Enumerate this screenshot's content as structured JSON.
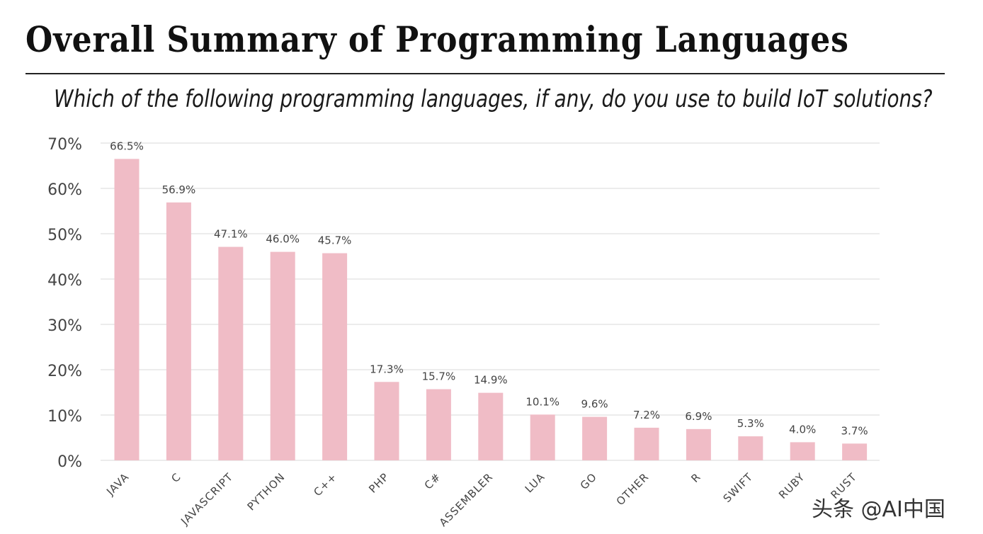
{
  "header": {
    "title": "Overall Summary of Programming Languages",
    "subtitle": "Which of the following programming languages, if any, do you use to build IoT solutions?"
  },
  "watermark": "头条 @AI中国",
  "chart_data": {
    "type": "bar",
    "categories": [
      "JAVA",
      "C",
      "JAVASCRIPT",
      "PYTHON",
      "C++",
      "PHP",
      "C#",
      "ASSEMBLER",
      "LUA",
      "GO",
      "OTHER",
      "R",
      "SWIFT",
      "RUBY",
      "RUST"
    ],
    "values": [
      66.5,
      56.9,
      47.1,
      46.0,
      45.7,
      17.3,
      15.7,
      14.9,
      10.1,
      9.6,
      7.2,
      6.9,
      5.3,
      4.0,
      3.7
    ],
    "data_labels": [
      "66.5%",
      "56.9%",
      "47.1%",
      "46.0%",
      "45.7%",
      "17.3%",
      "15.7%",
      "14.9%",
      "10.1%",
      "9.6%",
      "7.2%",
      "6.9%",
      "5.3%",
      "4.0%",
      "3.7%"
    ],
    "y_ticks": [
      "0%",
      "10%",
      "20%",
      "30%",
      "40%",
      "50%",
      "60%",
      "70%"
    ],
    "ylim": [
      0,
      70
    ],
    "xlabel": "",
    "ylabel": "",
    "grid": true,
    "bar_color": "#f0bcc6",
    "grid_color": "#d9d9d9",
    "text_color": "#444444"
  }
}
